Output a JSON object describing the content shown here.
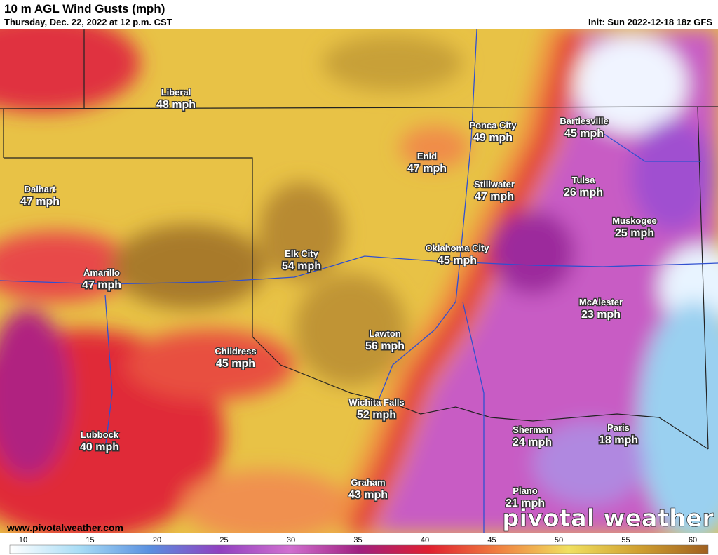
{
  "header": {
    "title": "10 m AGL Wind Gusts (mph)",
    "subtitle": "Thursday, Dec. 22, 2022 at 12 p.m. CST",
    "init": "Init: Sun 2022-12-18 18z GFS"
  },
  "cities": [
    {
      "name": "Liberal",
      "value": "48 mph"
    },
    {
      "name": "Dalhart",
      "value": "47 mph"
    },
    {
      "name": "Amarillo",
      "value": "47 mph"
    },
    {
      "name": "Elk City",
      "value": "54 mph"
    },
    {
      "name": "Childress",
      "value": "45 mph"
    },
    {
      "name": "Lawton",
      "value": "56 mph"
    },
    {
      "name": "Wichita Falls",
      "value": "52 mph"
    },
    {
      "name": "Lubbock",
      "value": "40 mph"
    },
    {
      "name": "Graham",
      "value": "43 mph"
    },
    {
      "name": "Enid",
      "value": "47 mph"
    },
    {
      "name": "Ponca City",
      "value": "49 mph"
    },
    {
      "name": "Stillwater",
      "value": "47 mph"
    },
    {
      "name": "Oklahoma City",
      "value": "45 mph"
    },
    {
      "name": "Bartlesville",
      "value": "45 mph"
    },
    {
      "name": "Tulsa",
      "value": "26 mph"
    },
    {
      "name": "Muskogee",
      "value": "25 mph"
    },
    {
      "name": "McAlester",
      "value": "23 mph"
    },
    {
      "name": "Sherman",
      "value": "24 mph"
    },
    {
      "name": "Paris",
      "value": "18 mph"
    },
    {
      "name": "Plano",
      "value": "21 mph"
    }
  ],
  "footer": {
    "website": "www.pivotalweather.com",
    "logo": "pivotal weather"
  },
  "colorbar": {
    "ticks": [
      10,
      15,
      20,
      25,
      30,
      35,
      40,
      45,
      50,
      55,
      60
    ]
  }
}
